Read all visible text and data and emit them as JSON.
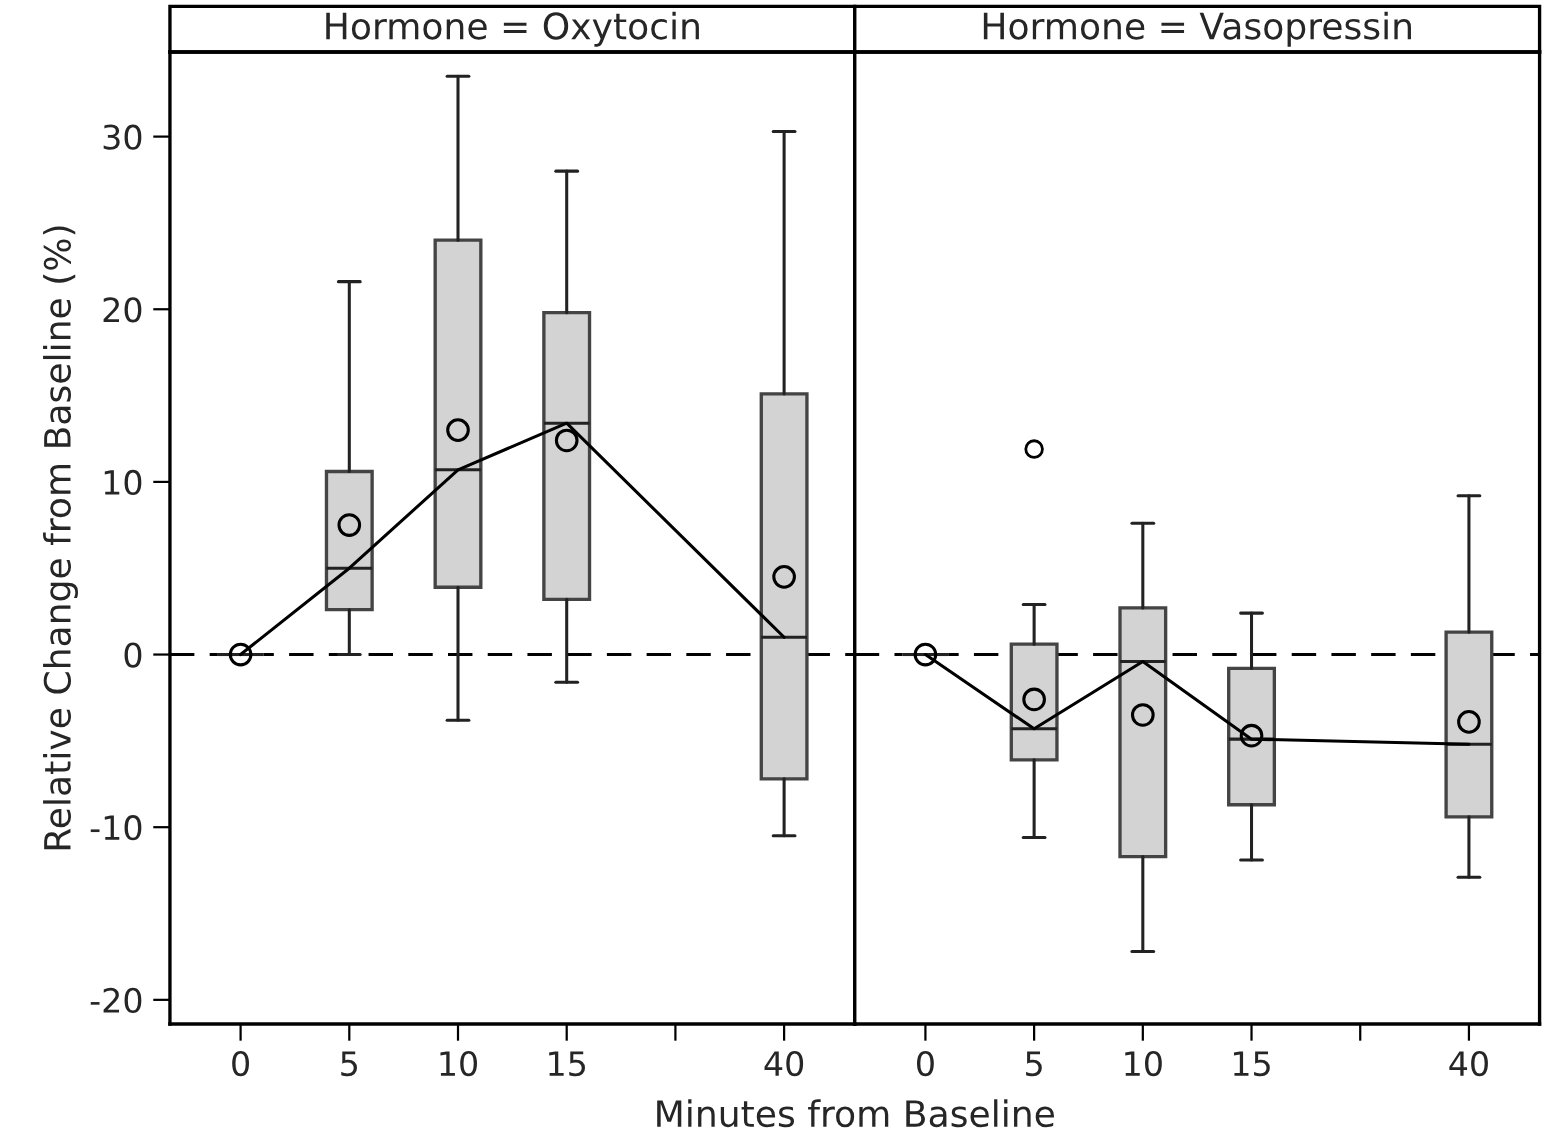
{
  "chart_data": [
    {
      "type": "box",
      "title": "Hormone = Oxytocin",
      "xlabel": "Minutes from Baseline",
      "ylabel": "Relative Change from Baseline (%)",
      "categories": [
        "0",
        "5",
        "10",
        "15",
        null,
        "40"
      ],
      "color": "#d3d3d3",
      "boxes": [
        {
          "low": 0,
          "q1": 0,
          "median": 0,
          "q3": 0,
          "high": 0
        },
        {
          "low": 0,
          "q1": 2.6,
          "median": 5.0,
          "q3": 10.6,
          "high": 21.6
        },
        {
          "low": -3.8,
          "q1": 3.9,
          "median": 10.7,
          "q3": 24.0,
          "high": 33.5
        },
        {
          "low": -1.6,
          "q1": 3.2,
          "median": 13.4,
          "q3": 19.8,
          "high": 28.0
        },
        null,
        {
          "low": -10.5,
          "q1": -7.2,
          "median": 1.0,
          "q3": 15.1,
          "high": 30.3
        }
      ],
      "series": [
        {
          "type": "scatter",
          "x": [
            "0",
            "5",
            "10",
            "15",
            "40"
          ],
          "values": [
            0,
            7.5,
            13.0,
            12.4,
            4.5
          ],
          "color": "#000000",
          "marker": "circle"
        },
        {
          "type": "line",
          "x": [
            "0",
            "5",
            "10",
            "15",
            "40"
          ],
          "values": [
            0,
            5.0,
            10.7,
            13.4,
            1.0
          ],
          "color": "#000000",
          "marker": "none"
        }
      ],
      "ylim": [
        -21.4,
        34.9
      ],
      "yticks": [
        -20,
        -10,
        0,
        10,
        20,
        30
      ],
      "ref_lines": [
        {
          "axis": "y",
          "value": 0,
          "line_style": "dashed",
          "color": "#000000"
        }
      ]
    },
    {
      "type": "box",
      "title": "Hormone = Vasopressin",
      "categories": [
        "0",
        "5",
        "10",
        "15",
        null,
        "40"
      ],
      "color": "#d3d3d3",
      "boxes": [
        {
          "low": 0,
          "q1": 0,
          "median": 0,
          "q3": 0,
          "high": 0
        },
        {
          "low": -10.6,
          "q1": -6.1,
          "median": -4.3,
          "q3": 0.6,
          "high": 2.9,
          "outliers": [
            11.9
          ]
        },
        {
          "low": -17.2,
          "q1": -11.7,
          "median": -0.4,
          "q3": 2.7,
          "high": 7.6
        },
        {
          "low": -11.9,
          "q1": -8.7,
          "median": -4.9,
          "q3": -0.8,
          "high": 2.4
        },
        null,
        {
          "low": -12.9,
          "q1": -9.4,
          "median": -5.2,
          "q3": 1.3,
          "high": 9.2
        }
      ],
      "series": [
        {
          "type": "scatter",
          "x": [
            "0",
            "5",
            "10",
            "15",
            "40"
          ],
          "values": [
            0,
            -2.6,
            -3.5,
            -4.7,
            -3.9
          ],
          "color": "#000000",
          "marker": "circle"
        },
        {
          "type": "line",
          "x": [
            "0",
            "5",
            "10",
            "15",
            "40"
          ],
          "values": [
            0,
            -4.3,
            -0.4,
            -4.9,
            -5.2
          ],
          "color": "#000000",
          "marker": "none"
        }
      ],
      "ylim": [
        -21.4,
        34.9
      ],
      "yticks": [
        -20,
        -10,
        0,
        10,
        20,
        30
      ],
      "tick_labels": "x",
      "ref_lines": [
        {
          "axis": "y",
          "value": 0,
          "line_style": "dashed",
          "color": "#000000"
        }
      ]
    }
  ]
}
